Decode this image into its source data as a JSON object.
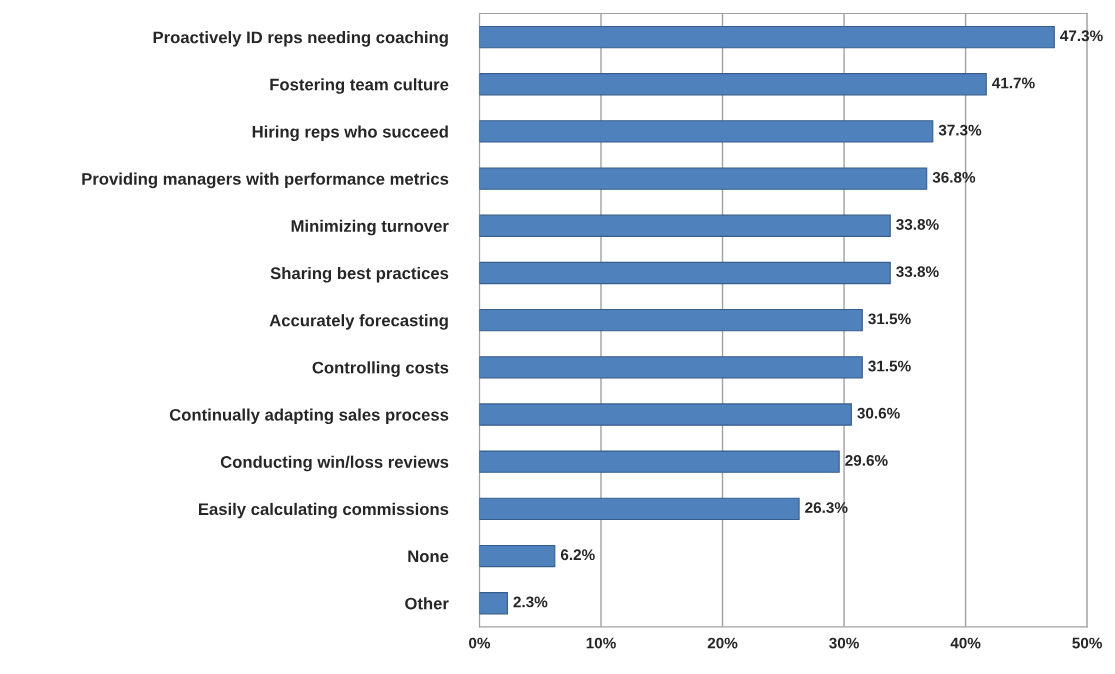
{
  "chart_data": {
    "type": "bar",
    "orientation": "horizontal",
    "categories": [
      "Proactively ID reps needing coaching",
      "Fostering team culture",
      "Hiring reps who succeed",
      "Providing managers with performance metrics",
      "Minimizing turnover",
      "Sharing best practices",
      "Accurately forecasting",
      "Controlling costs",
      "Continually adapting sales process",
      "Conducting win/loss reviews",
      "Easily calculating commissions",
      "None",
      "Other"
    ],
    "values": [
      47.3,
      41.7,
      37.3,
      36.8,
      33.8,
      33.8,
      31.5,
      31.5,
      30.6,
      29.6,
      26.3,
      6.2,
      2.3
    ],
    "value_labels": [
      "47.3%",
      "41.7%",
      "37.3%",
      "36.8%",
      "33.8%",
      "33.8%",
      "31.5%",
      "31.5%",
      "30.6%",
      "29.6%",
      "26.3%",
      "6.2%",
      "2.3%"
    ],
    "color": "#4f81bd",
    "xlim": [
      0,
      50
    ],
    "xticks": [
      {
        "value": 0,
        "label": "0%"
      },
      {
        "value": 10,
        "label": "10%"
      },
      {
        "value": 20,
        "label": "20%"
      },
      {
        "value": 30,
        "label": "30%"
      },
      {
        "value": 40,
        "label": "40%"
      },
      {
        "value": 50,
        "label": "50%"
      }
    ],
    "grid": "x"
  }
}
